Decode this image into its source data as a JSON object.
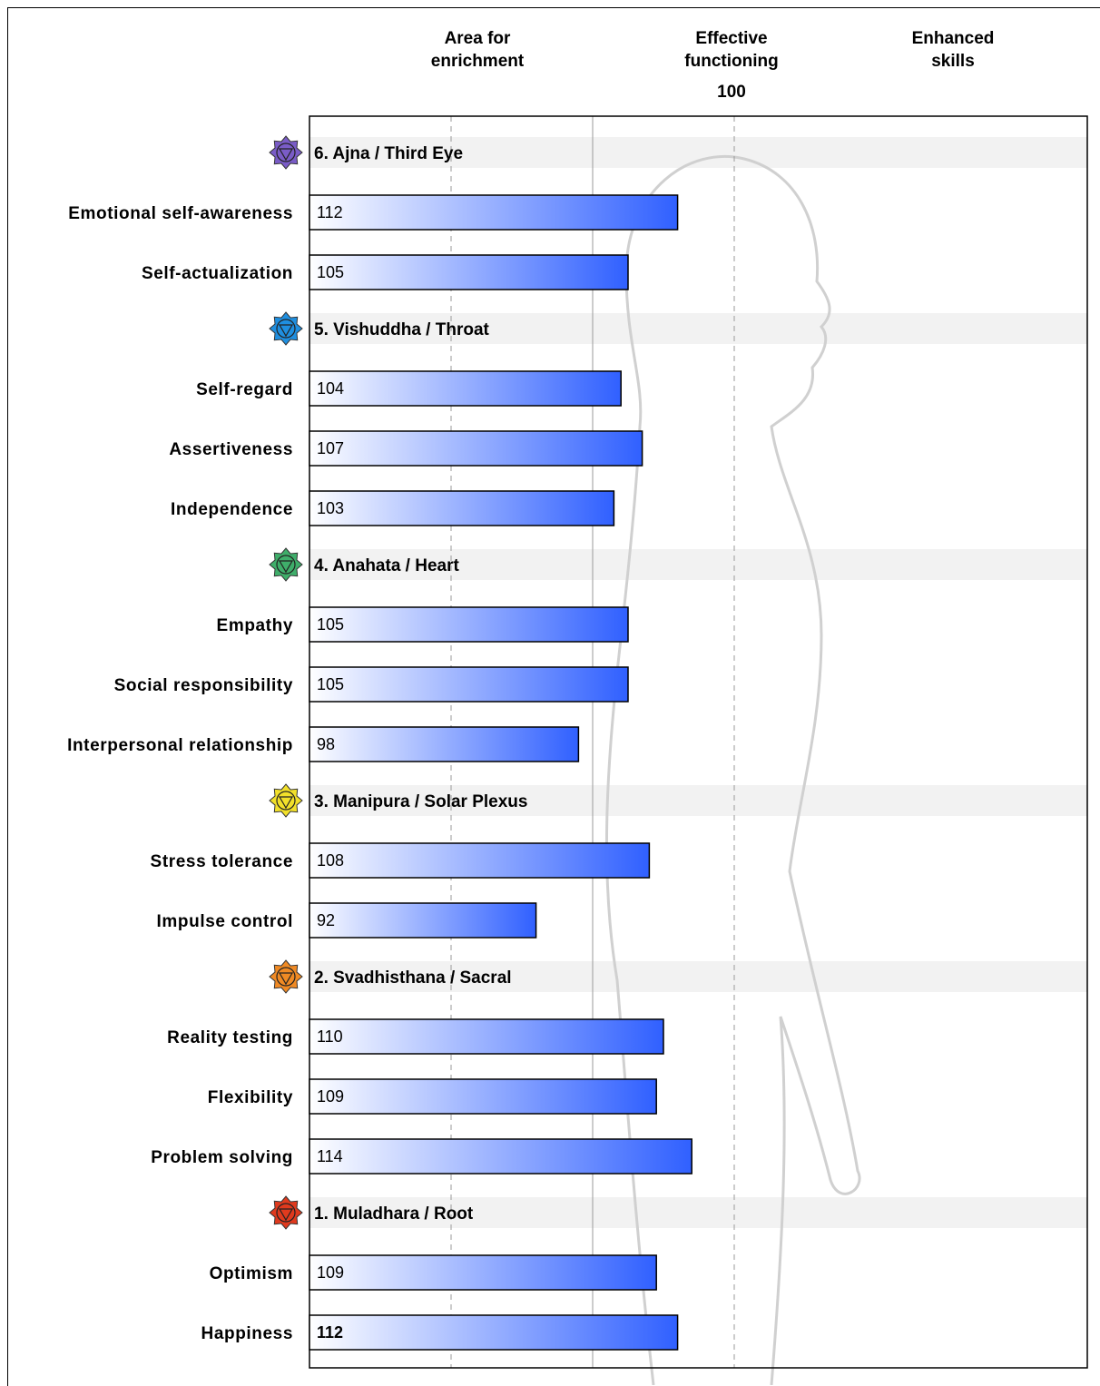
{
  "headers": {
    "left": [
      "Area for",
      "enrichment"
    ],
    "center": [
      "Effective",
      "functioning"
    ],
    "right": [
      "Enhanced",
      "skills"
    ],
    "center_value": "100"
  },
  "colors": {
    "bar_start": "#ffffff",
    "bar_end": "#3060ff",
    "group_band": "#f2f2f2",
    "gridline": "#999999",
    "silhouette": "#d0d0d0"
  },
  "chart_data": {
    "type": "bar",
    "orientation": "horizontal",
    "xlim": [
      60,
      140
    ],
    "reference_lines": [
      80,
      100,
      120
    ],
    "groups": [
      {
        "label": "6. Ajna / Third Eye",
        "icon": "ajna-chakra-icon",
        "color": "#7a5cc7",
        "items": [
          {
            "label": "Emotional self-awareness",
            "value": 112
          },
          {
            "label": "Self-actualization",
            "value": 105
          }
        ]
      },
      {
        "label": "5. Vishuddha / Throat",
        "icon": "vishuddha-chakra-icon",
        "color": "#1f8fe0",
        "items": [
          {
            "label": "Self-regard",
            "value": 104
          },
          {
            "label": "Assertiveness",
            "value": 107
          },
          {
            "label": "Independence",
            "value": 103
          }
        ]
      },
      {
        "label": "4. Anahata / Heart",
        "icon": "anahata-chakra-icon",
        "color": "#3fae6a",
        "items": [
          {
            "label": "Empathy",
            "value": 105
          },
          {
            "label": "Social responsibility",
            "value": 105
          },
          {
            "label": "Interpersonal relationship",
            "value": 98
          }
        ]
      },
      {
        "label": "3. Manipura / Solar Plexus",
        "icon": "manipura-chakra-icon",
        "color": "#f2e02a",
        "items": [
          {
            "label": "Stress tolerance",
            "value": 108
          },
          {
            "label": "Impulse control",
            "value": 92
          }
        ]
      },
      {
        "label": "2. Svadhisthana / Sacral",
        "icon": "svadhisthana-chakra-icon",
        "color": "#f08a24",
        "items": [
          {
            "label": "Reality testing",
            "value": 110
          },
          {
            "label": "Flexibility",
            "value": 109
          },
          {
            "label": "Problem solving",
            "value": 114
          }
        ]
      },
      {
        "label": "1. Muladhara / Root",
        "icon": "muladhara-chakra-icon",
        "color": "#e03a1e",
        "items": [
          {
            "label": "Optimism",
            "value": 109
          },
          {
            "label": "Happiness",
            "value": 112,
            "emphasis": true
          }
        ]
      }
    ]
  }
}
